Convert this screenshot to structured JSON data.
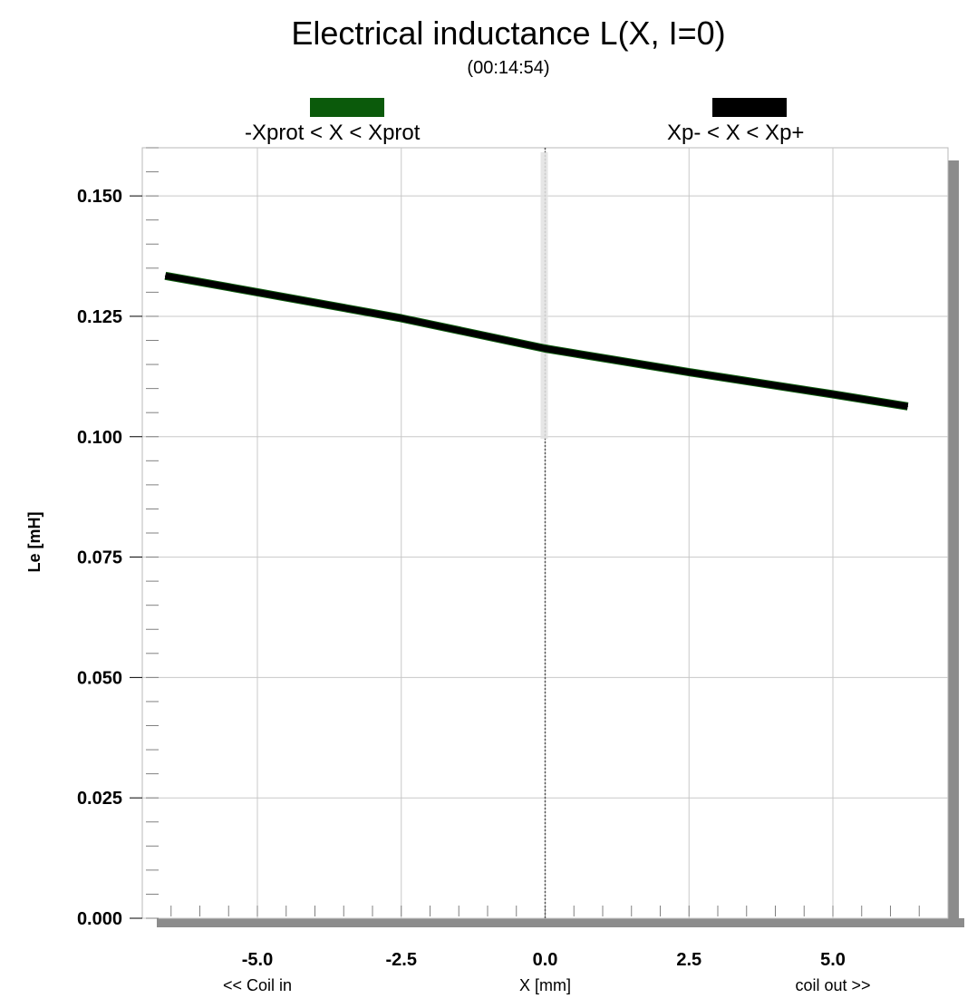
{
  "chart_data": {
    "type": "line",
    "title": "Electrical inductance L(X, I=0)",
    "subtitle": "(00:14:54)",
    "xlabel": "X [mm]",
    "x_left_note": "<< Coil in",
    "x_right_note": "coil out >>",
    "ylabel": "Le [mH]",
    "xlim": [
      -7.0,
      7.0
    ],
    "ylim": [
      0.0,
      0.16
    ],
    "xticks": [
      -5.0,
      -2.5,
      0.0,
      2.5,
      5.0
    ],
    "xtick_labels": [
      "-5.0",
      "-2.5",
      "0.0",
      "2.5",
      "5.0"
    ],
    "yticks": [
      0.0,
      0.025,
      0.05,
      0.075,
      0.1,
      0.125,
      0.15
    ],
    "ytick_labels": [
      "0.000",
      "0.025",
      "0.050",
      "0.075",
      "0.100",
      "0.125",
      "0.150"
    ],
    "grid": true,
    "legend_position": "top",
    "series": [
      {
        "name": "-Xprot < X < Xprot",
        "color": "#0b5a0b",
        "x": [
          -6.6,
          -5.0,
          -2.5,
          0.0,
          2.5,
          5.0,
          6.3
        ],
        "y": [
          0.1334,
          0.13,
          0.1246,
          0.1183,
          0.1134,
          0.1088,
          0.1063
        ]
      },
      {
        "name": "Xp- < X < Xp+",
        "color": "#000000",
        "x": [
          -6.6,
          -5.0,
          -2.5,
          0.0,
          2.5,
          5.0,
          6.3
        ],
        "y": [
          0.1334,
          0.13,
          0.1246,
          0.1183,
          0.1134,
          0.1088,
          0.1063
        ]
      }
    ]
  }
}
